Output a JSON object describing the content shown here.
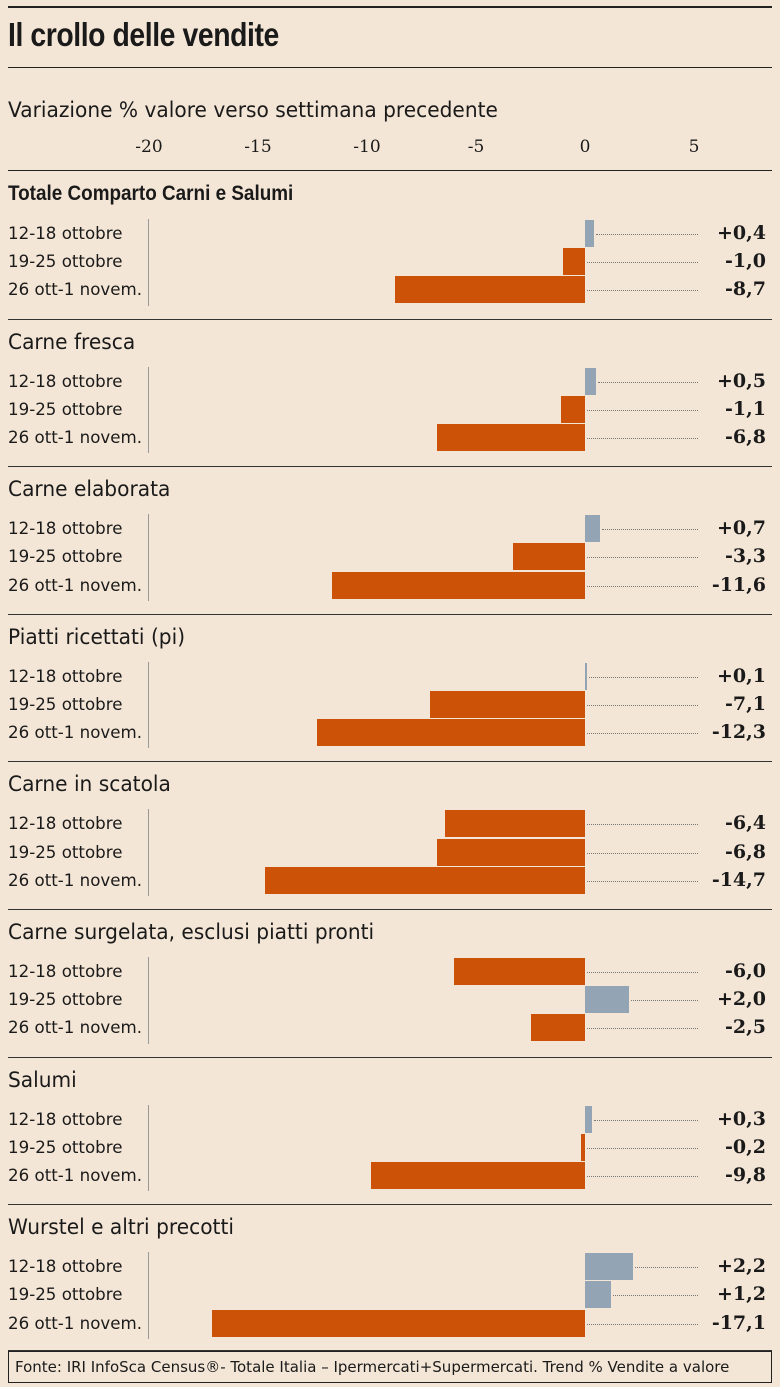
{
  "title": "Il crollo delle vendite",
  "subtitle": "Variazione % valore verso settimana precedente",
  "colors": {
    "negative": "#cc5208",
    "positive": "#93a4b4",
    "background": "#f4e6d6"
  },
  "chart_data": {
    "type": "bar",
    "orientation": "horizontal",
    "xlim": [
      -20,
      5
    ],
    "ticks": [
      -20,
      -15,
      -10,
      -5,
      0,
      5
    ],
    "tick_labels": [
      "-20",
      "-15",
      "-10",
      "-5",
      "0",
      "5"
    ],
    "xlabel": "Variazione % valore verso settimana precedente",
    "categories": [
      "12-18 ottobre",
      "19-25 ottobre",
      "26 ott-1 novem."
    ],
    "groups": [
      {
        "name": "Totale Comparto Carni e Salumi",
        "bold": true,
        "values": [
          0.4,
          -1.0,
          -8.7
        ],
        "labels": [
          "+0,4",
          "-1,0",
          "-8,7"
        ]
      },
      {
        "name": "Carne fresca",
        "values": [
          0.5,
          -1.1,
          -6.8
        ],
        "labels": [
          "+0,5",
          "-1,1",
          "-6,8"
        ]
      },
      {
        "name": "Carne elaborata",
        "values": [
          0.7,
          -3.3,
          -11.6
        ],
        "labels": [
          "+0,7",
          "-3,3",
          "-11,6"
        ]
      },
      {
        "name": "Piatti ricettati (pi)",
        "values": [
          0.1,
          -7.1,
          -12.3
        ],
        "labels": [
          "+0,1",
          "-7,1",
          "-12,3"
        ]
      },
      {
        "name": "Carne in scatola",
        "values": [
          -6.4,
          -6.8,
          -14.7
        ],
        "labels": [
          "-6,4",
          "-6,8",
          "-14,7"
        ]
      },
      {
        "name": "Carne surgelata, esclusi piatti pronti",
        "values": [
          -6.0,
          2.0,
          -2.5
        ],
        "labels": [
          "-6,0",
          "+2,0",
          "-2,5"
        ]
      },
      {
        "name": "Salumi",
        "values": [
          0.3,
          -0.2,
          -9.8
        ],
        "labels": [
          "+0,3",
          "-0,2",
          "-9,8"
        ]
      },
      {
        "name": "Wurstel e altri precotti",
        "values": [
          2.2,
          1.2,
          -17.1
        ],
        "labels": [
          "+2,2",
          "+1,2",
          "-17,1"
        ]
      }
    ]
  },
  "source": "Fonte: IRI InfoSca Census®- Totale Italia – Ipermercati+Supermercati. Trend % Vendite a valore"
}
